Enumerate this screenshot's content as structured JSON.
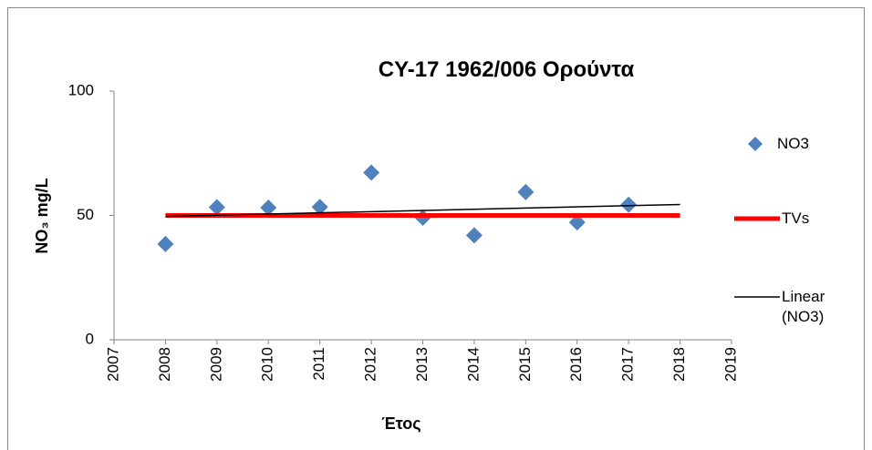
{
  "chart_data": {
    "type": "scatter",
    "title": "CY-17 1962/006 Ορούντα",
    "x_label": "Έτος",
    "y_label": "NO₃ mg/L",
    "xlim": [
      2007,
      2019
    ],
    "xticks": [
      2007,
      2008,
      2009,
      2010,
      2011,
      2012,
      2013,
      2014,
      2015,
      2016,
      2017,
      2018,
      2019
    ],
    "ylim": [
      0,
      100
    ],
    "yticks": [
      0,
      50,
      100
    ],
    "grid": false,
    "series": [
      {
        "name": "NO3",
        "color": "#4f81bd",
        "mode": "markers",
        "x": [
          2008,
          2009,
          2010,
          2011,
          2012,
          2013,
          2014,
          2015,
          2016,
          2017
        ],
        "values": [
          38.5,
          53.3,
          53.1,
          53.4,
          67.2,
          49.1,
          42,
          59.4,
          47.2,
          54.3
        ]
      },
      {
        "name": "TVs",
        "color": "#ff0000",
        "mode": "line",
        "width": 5,
        "x": [
          2008,
          2018
        ],
        "values": [
          50,
          50
        ]
      },
      {
        "name": "Linear (NO3)",
        "color": "#000000",
        "mode": "line",
        "width": 1.5,
        "x": [
          2008,
          2018
        ],
        "values": [
          49.6,
          54.4
        ]
      }
    ]
  }
}
